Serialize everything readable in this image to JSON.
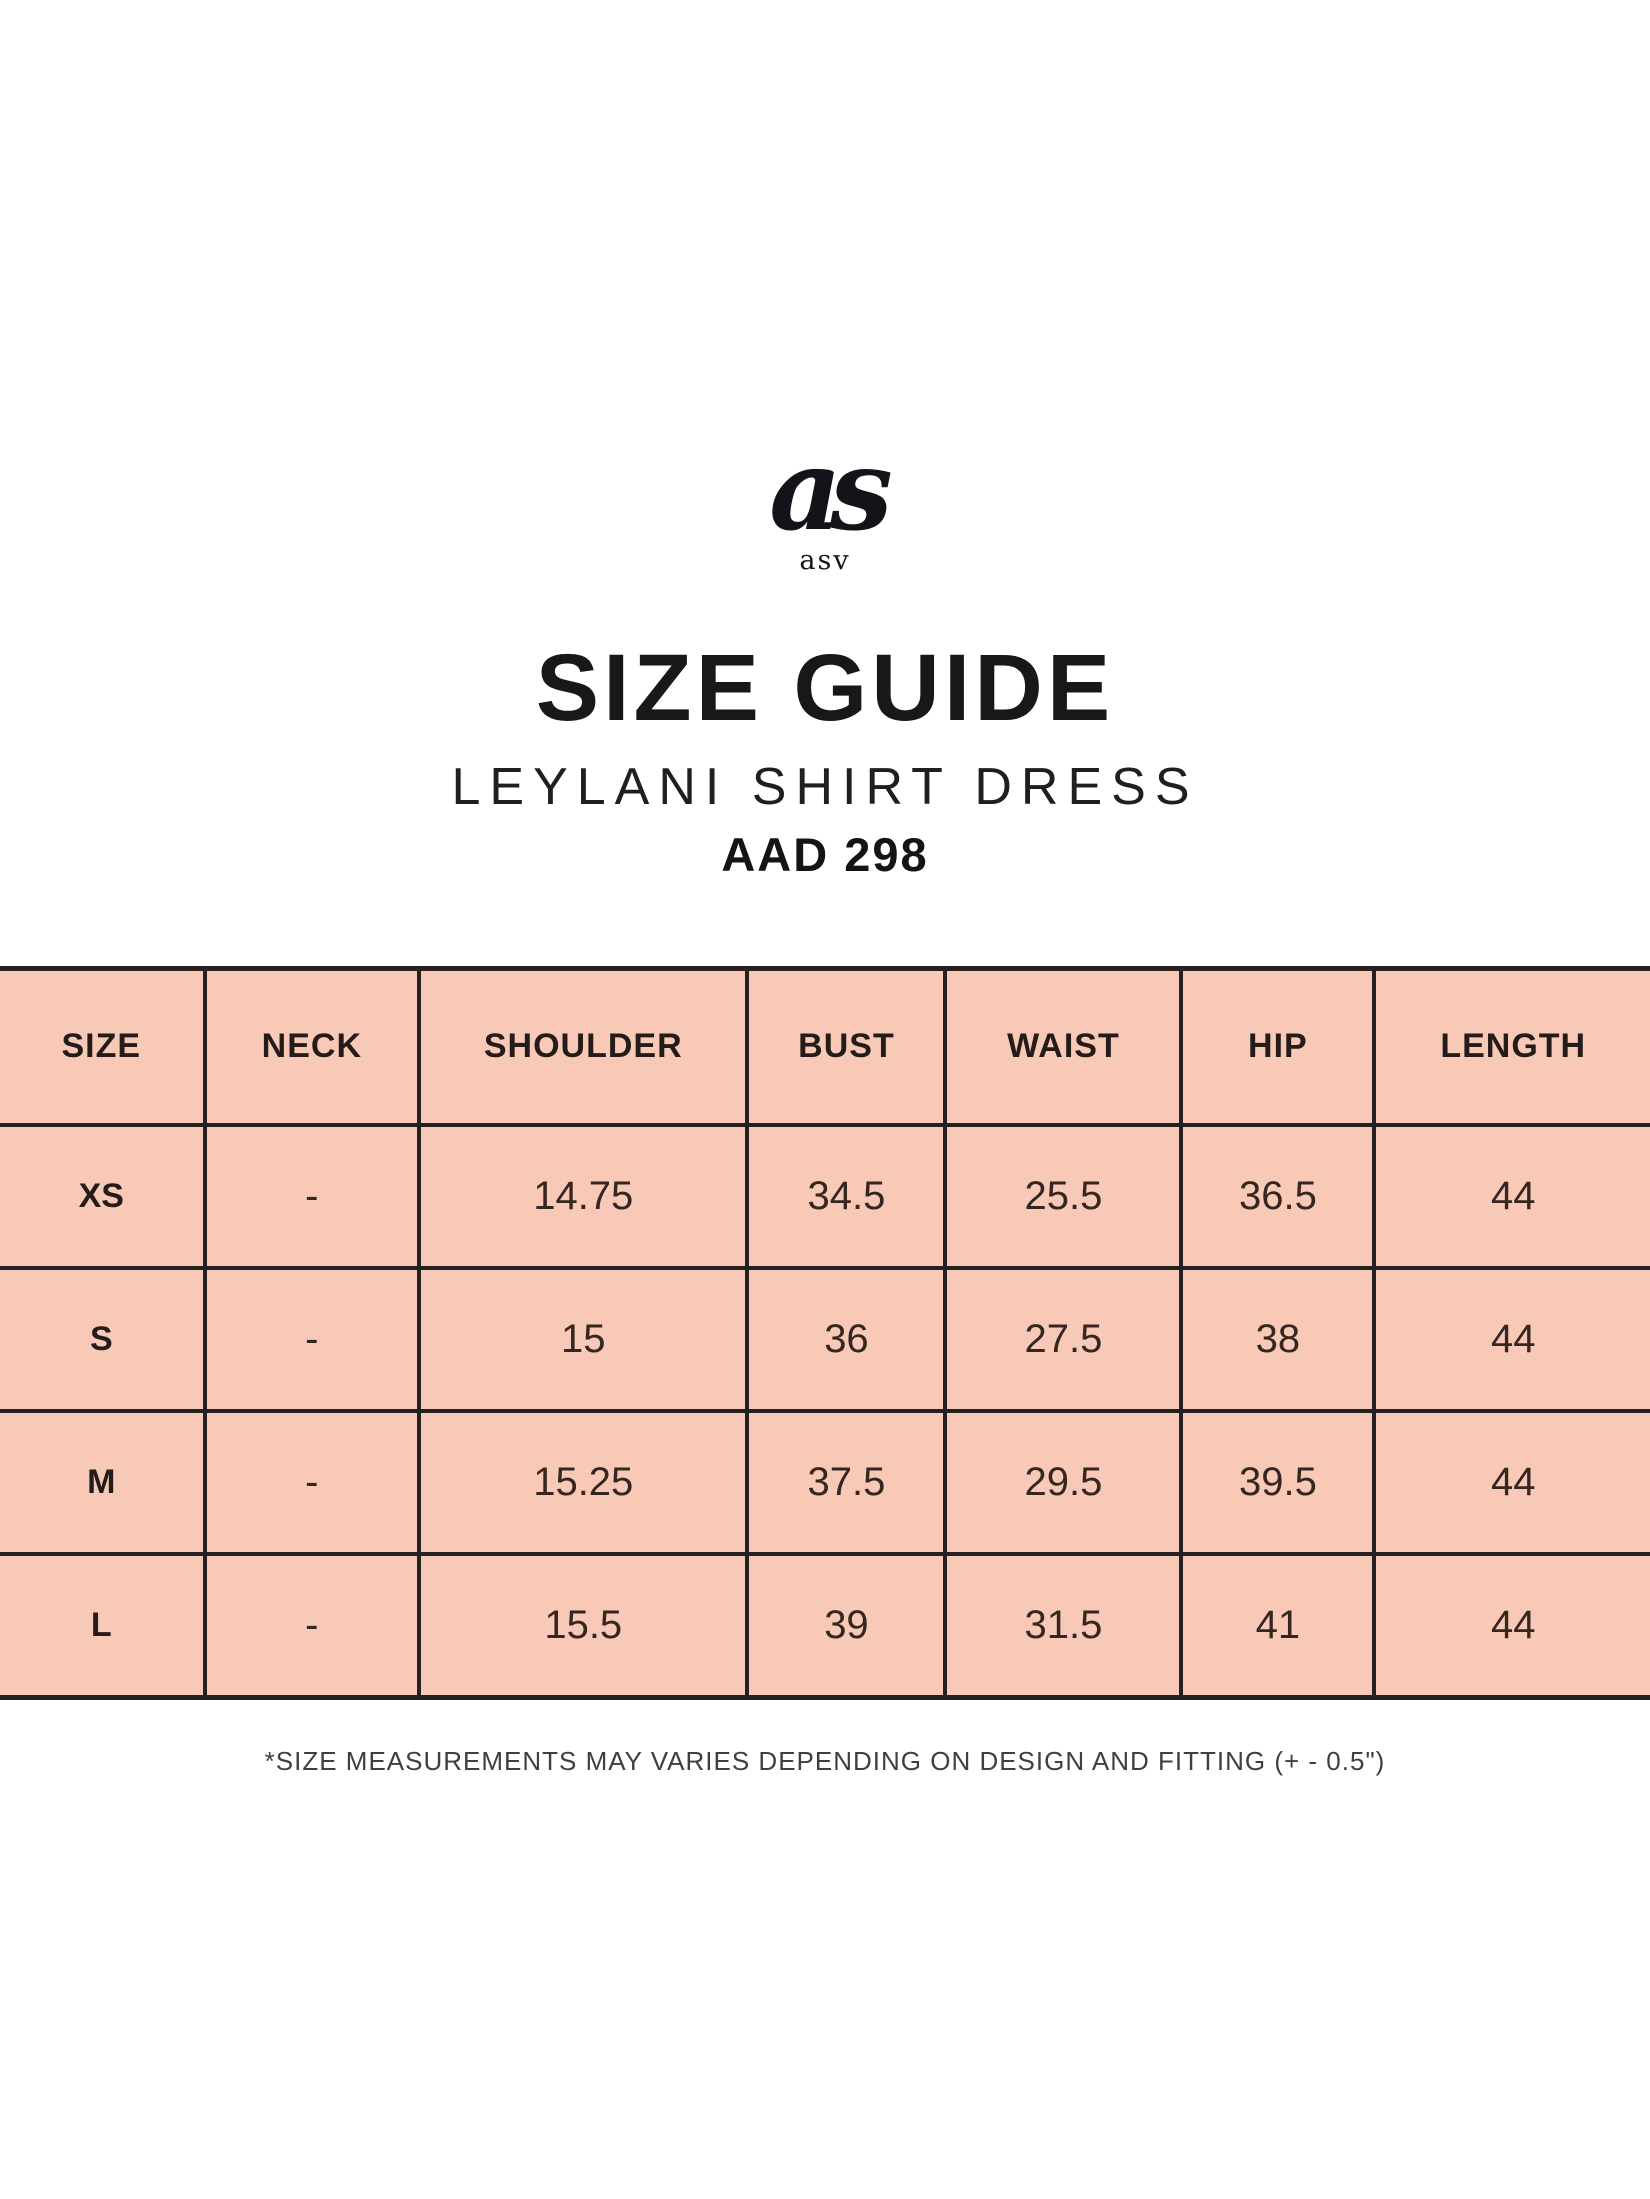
{
  "brand": {
    "monogram": "as",
    "name": "asv"
  },
  "header": {
    "title": "SIZE GUIDE",
    "product_name": "LEYLANI SHIRT DRESS",
    "product_code": "AAD 298"
  },
  "table": {
    "columns": [
      "SIZE",
      "NECK",
      "SHOULDER",
      "BUST",
      "WAIST",
      "HIP",
      "LENGTH"
    ],
    "rows": [
      [
        "XS",
        "-",
        "14.75",
        "34.5",
        "25.5",
        "36.5",
        "44"
      ],
      [
        "S",
        "-",
        "15",
        "36",
        "27.5",
        "38",
        "44"
      ],
      [
        "M",
        "-",
        "15.25",
        "37.5",
        "29.5",
        "39.5",
        "44"
      ],
      [
        "L",
        "-",
        "15.5",
        "39",
        "31.5",
        "41",
        "44"
      ]
    ]
  },
  "footnote": "*SIZE MEASUREMENTS MAY VARIES DEPENDING ON DESIGN AND FITTING (+ - 0.5\")",
  "colors": {
    "table_cell_background": "#f9c9b7",
    "table_border": "#272020",
    "text": "#241c1a"
  }
}
